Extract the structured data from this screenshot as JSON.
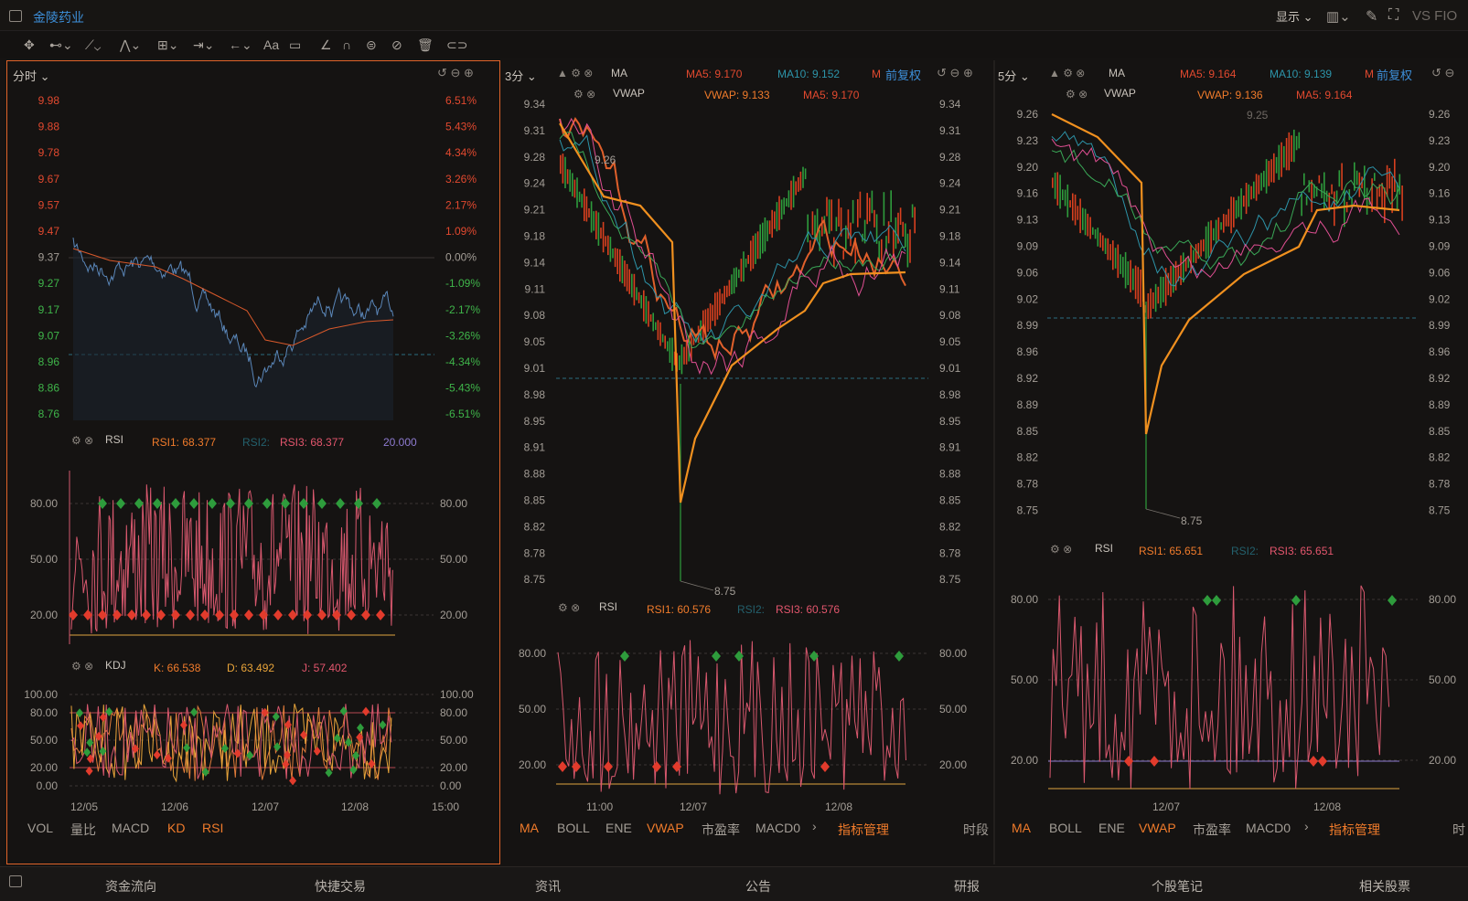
{
  "app": {
    "title": "金陵药业",
    "display_label": "显示",
    "vs_label": "VS FIO"
  },
  "toolbar": {
    "font_label": "Aa"
  },
  "pane1": {
    "period": "分时",
    "price_ticks": [
      "9.98",
      "9.88",
      "9.78",
      "9.67",
      "9.57",
      "9.47",
      "9.37",
      "9.27",
      "9.17",
      "9.07",
      "8.96",
      "8.86",
      "8.76"
    ],
    "pct_ticks": [
      "6.51%",
      "5.43%",
      "4.34%",
      "3.26%",
      "2.17%",
      "1.09%",
      "0.00%",
      "-1.09%",
      "-2.17%",
      "-3.26%",
      "-4.34%",
      "-5.43%",
      "-6.51%"
    ],
    "rsi": {
      "name": "RSI",
      "rsi1": "RSI1: 68.377",
      "rsi2": "RSI2:",
      "rsi3": "RSI3: 68.377",
      "extra": "20.000",
      "ticks": [
        "80.00",
        "50.00",
        "20.00"
      ]
    },
    "kdj": {
      "name": "KDJ",
      "k": "K: 66.538",
      "d": "D: 63.492",
      "j": "J: 57.402",
      "ticks": [
        "100.00",
        "80.00",
        "50.00",
        "20.00",
        "0.00"
      ]
    },
    "dates": [
      "12/05",
      "12/06",
      "12/07",
      "12/08",
      "15:00"
    ],
    "tabs": [
      "VOL",
      "量比",
      "MACD",
      "KD",
      "RSI"
    ]
  },
  "pane2": {
    "period": "3分",
    "ma_name": "MA",
    "ma5": "MA5: 9.170",
    "ma10": "MA10: 9.152",
    "ma_more": "M",
    "fq": "前复权",
    "vwap_name": "VWAP",
    "vwap": "VWAP: 9.133",
    "vwap_ma5": "MA5: 9.170",
    "price_ticks": [
      "9.34",
      "9.31",
      "9.28",
      "9.24",
      "9.21",
      "9.18",
      "9.14",
      "9.11",
      "9.08",
      "9.05",
      "9.01",
      "8.98",
      "8.95",
      "8.91",
      "8.88",
      "8.85",
      "8.82",
      "8.78",
      "8.75"
    ],
    "high_label": "9.26",
    "low_label": "8.75",
    "rsi": {
      "name": "RSI",
      "rsi1": "RSI1: 60.576",
      "rsi2": "RSI2:",
      "rsi3": "RSI3: 60.576",
      "ticks": [
        "80.00",
        "50.00",
        "20.00"
      ]
    },
    "dates": [
      "11:00",
      "12/07",
      "12/08"
    ],
    "tabs": [
      "MA",
      "BOLL",
      "ENE",
      "VWAP",
      "市盈率",
      "MACD0",
      "指标管理",
      "时段"
    ]
  },
  "pane3": {
    "period": "5分",
    "ma_name": "MA",
    "ma5": "MA5: 9.164",
    "ma10": "MA10: 9.139",
    "ma_more": "M",
    "fq": "前复权",
    "vwap_name": "VWAP",
    "vwap": "VWAP: 9.136",
    "vwap_ma5": "MA5: 9.164",
    "price_ticks": [
      "9.26",
      "9.23",
      "9.20",
      "9.16",
      "9.13",
      "9.09",
      "9.06",
      "9.02",
      "8.99",
      "8.96",
      "8.92",
      "8.89",
      "8.85",
      "8.82",
      "8.78",
      "8.75"
    ],
    "high_label": "9.25",
    "low_label": "8.75",
    "rsi": {
      "name": "RSI",
      "rsi1": "RSI1: 65.651",
      "rsi2": "RSI2:",
      "rsi3": "RSI3: 65.651",
      "ticks": [
        "80.00",
        "50.00",
        "20.00"
      ]
    },
    "dates": [
      "12/07",
      "12/08"
    ],
    "tabs": [
      "MA",
      "BOLL",
      "ENE",
      "VWAP",
      "市盈率",
      "MACD0",
      "指标管理",
      "时"
    ]
  },
  "bottom": [
    "资金流向",
    "快捷交易",
    "资讯",
    "公告",
    "研报",
    "个股笔记",
    "相关股票"
  ],
  "colors": {
    "accent": "#e0642a",
    "up": "#e2492f",
    "down": "#3fb54a",
    "link": "#3d8fd9"
  }
}
